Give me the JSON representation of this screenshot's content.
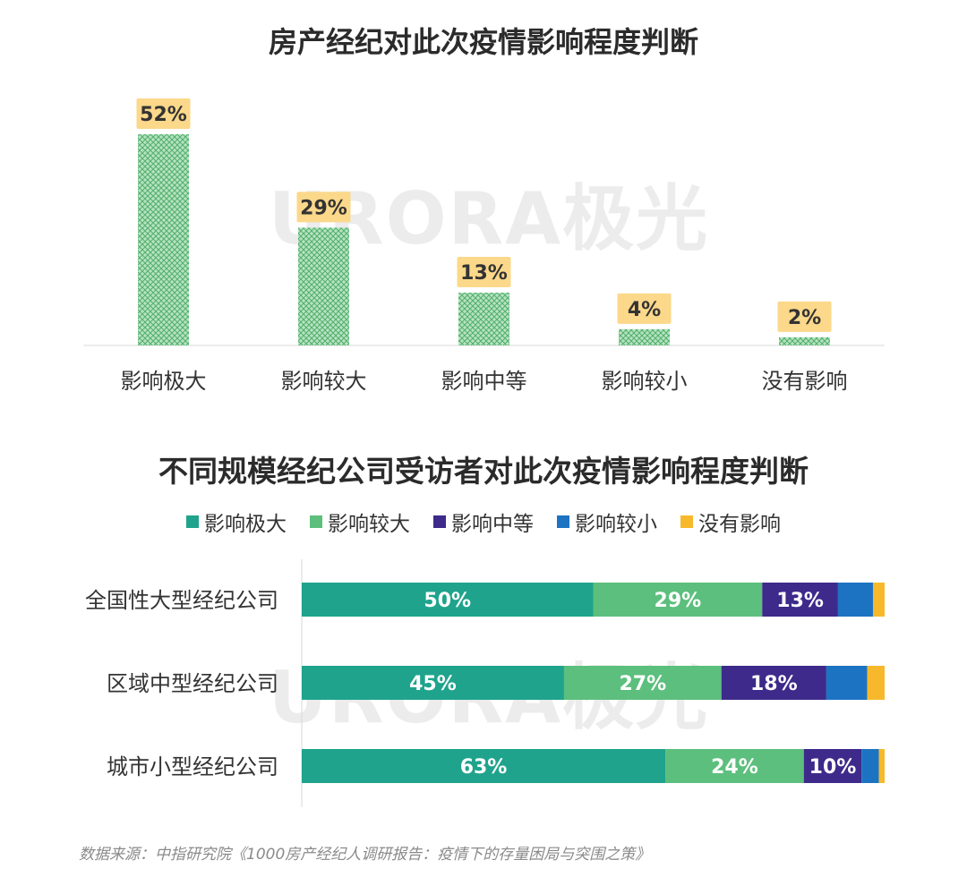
{
  "watermark": "URORA极光",
  "colors": {
    "影响极大": "#1fa38c",
    "影响较大": "#5cbf7d",
    "影响中等": "#3d2a8a",
    "影响较小": "#1c73c2",
    "没有影响": "#f7b92b",
    "column_fill": "#8fd19e",
    "label_bg": "#fbd88a"
  },
  "chart_data": [
    {
      "type": "bar",
      "title": "房产经纪对此次疫情影响程度判断",
      "categories": [
        "影响极大",
        "影响较大",
        "影响中等",
        "影响较小",
        "没有影响"
      ],
      "values": [
        52,
        29,
        13,
        4,
        2
      ],
      "value_labels": [
        "52%",
        "29%",
        "13%",
        "4%",
        "2%"
      ],
      "unit": "%",
      "ylim": [
        0,
        52
      ],
      "grid": false
    },
    {
      "type": "bar",
      "orientation": "horizontal",
      "stacked": true,
      "title": "不同规模经纪公司受访者对此次疫情影响程度判断",
      "legend_position": "top",
      "categories": [
        "全国性大型经纪公司",
        "区域中型经纪公司",
        "城市小型经纪公司"
      ],
      "series": [
        {
          "name": "影响极大",
          "values": [
            50,
            45,
            63
          ],
          "labels": [
            "50%",
            "45%",
            "63%"
          ]
        },
        {
          "name": "影响较大",
          "values": [
            29,
            27,
            24
          ],
          "labels": [
            "29%",
            "27%",
            "24%"
          ]
        },
        {
          "name": "影响中等",
          "values": [
            13,
            18,
            10
          ],
          "labels": [
            "13%",
            "18%",
            "10%"
          ]
        },
        {
          "name": "影响较小",
          "values": [
            6,
            7,
            3
          ],
          "labels": [
            "",
            "",
            ""
          ]
        },
        {
          "name": "没有影响",
          "values": [
            2,
            3,
            1
          ],
          "labels": [
            "",
            "",
            ""
          ]
        }
      ],
      "xlim": [
        0,
        100
      ],
      "grid": false
    }
  ],
  "source": "数据来源：中指研究院《1000房产经纪人调研报告：疫情下的存量困局与突围之策》"
}
